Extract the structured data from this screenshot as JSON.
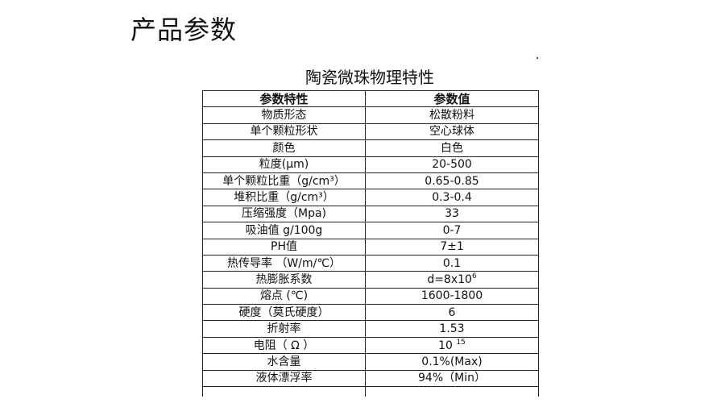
{
  "heading": "产品参数",
  "table": {
    "title": "陶瓷微珠物理特性",
    "headers": [
      "参数特性",
      "参数值"
    ],
    "rows": [
      {
        "name": "物质形态",
        "value": "松散粉料"
      },
      {
        "name": "单个颗粒形状",
        "value": "空心球体"
      },
      {
        "name": "颜色",
        "value": "白色"
      },
      {
        "name": "粒度(μm)",
        "value": "20-500"
      },
      {
        "name": "单个颗粒比重（g/cm³）",
        "value": "0.65-0.85"
      },
      {
        "name": "堆积比重（g/cm³）",
        "value": "0.3-0.4"
      },
      {
        "name": "压缩强度（Mpa)",
        "value": "33"
      },
      {
        "name": "吸油值 g/100g",
        "value": "0-7"
      },
      {
        "name": "PH值",
        "value": "7±1"
      },
      {
        "name": "热传导率 （W/m/℃）",
        "value": "0.1"
      },
      {
        "name": "热膨胀系数",
        "value": "d=8x10",
        "sup": "6"
      },
      {
        "name": "熔点 (℃)",
        "value": "1600-1800"
      },
      {
        "name": "硬度（莫氏硬度）",
        "value": "6"
      },
      {
        "name": "折射率",
        "value": "1.53"
      },
      {
        "name": "电阻（ Ω ）",
        "value": "10 ",
        "sup": "15"
      },
      {
        "name": "水含量",
        "value": "0.1%(Max)"
      },
      {
        "name": "液体漂浮率",
        "value": "94%（Min）"
      }
    ]
  }
}
